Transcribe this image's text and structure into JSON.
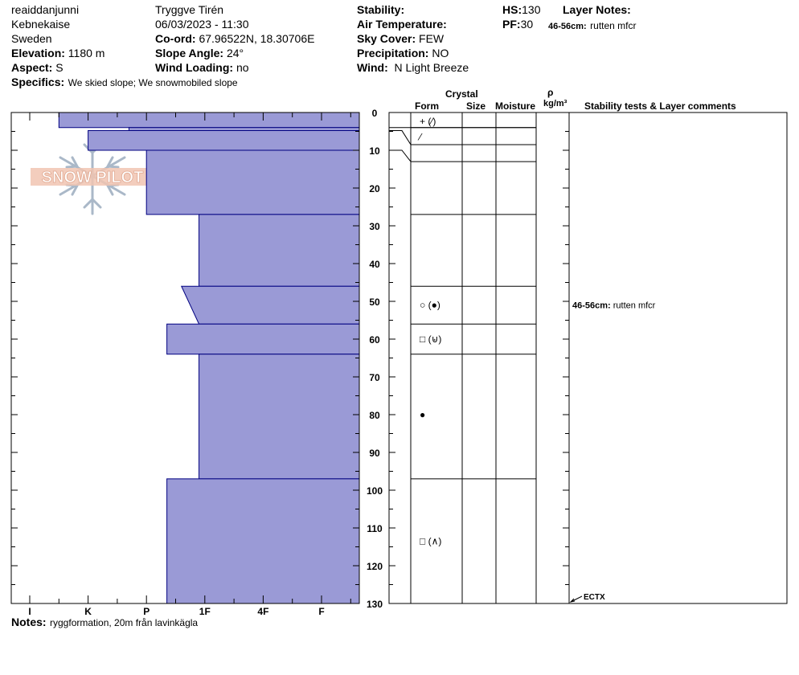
{
  "header": {
    "observer": "reaiddanjunni",
    "location": "Kebnekaise",
    "country": "Sweden",
    "elevation_label": "Elevation:",
    "elevation": "1180 m",
    "aspect_label": "Aspect:",
    "aspect": "S",
    "specifics_label": "Specifics:",
    "specifics": "We skied slope; We snowmobiled slope",
    "name": "Tryggve  Tirén",
    "datetime": "06/03/2023 - 11:30",
    "coord_label": "Co-ord:",
    "coord": "67.96522N, 18.30706E",
    "slope_label": "Slope Angle:",
    "slope": "24°",
    "wind_loading_label": "Wind Loading:",
    "wind_loading": "no",
    "stability_label": "Stability:",
    "stability": "",
    "air_temp_label": "Air Temperature:",
    "air_temp": "",
    "sky_label": "Sky Cover:",
    "sky": "FEW",
    "precip_label": "Precipitation:",
    "precip": "NO",
    "wind_label": "Wind:",
    "wind": "N Light Breeze",
    "hs_label": "HS:",
    "hs": "130",
    "pf_label": "PF:",
    "pf": "30",
    "layer_notes_label": "Layer Notes:",
    "layer_note_range": "46-56cm:",
    "layer_note_text": "rutten mfcr"
  },
  "notes_label": "Notes:",
  "notes": "ryggformation, 20m från lavinkägla",
  "logo_text": "SNOW PILOT",
  "table_headers": {
    "crystal": "Crystal",
    "form": "Form",
    "size": "Size",
    "moisture": "Moisture",
    "rho": "ρ",
    "density_unit": "kg/m³",
    "stability_comments": "Stability tests & Layer comments"
  },
  "comments": [
    {
      "range": "46-56cm:",
      "text": "rutten mfcr",
      "depth": 51
    }
  ],
  "stability_tests": [
    {
      "label": "ECTX",
      "depth": 130
    }
  ],
  "colors": {
    "layer_fill": "#9a9ad6",
    "layer_stroke": "#000080"
  },
  "chart_data": {
    "type": "bar",
    "orientation": "horizontal",
    "xlabel": "",
    "ylabel": "",
    "y_axis": {
      "ticks": [
        0,
        10,
        20,
        30,
        40,
        50,
        60,
        70,
        80,
        90,
        100,
        110,
        120,
        130
      ],
      "range": [
        0,
        130
      ]
    },
    "hardness_ticks": [
      "I",
      "K",
      "P",
      "1F",
      "4F",
      "F"
    ],
    "layers": [
      {
        "top": 0,
        "bottom": 4,
        "hardness": 0.5
      },
      {
        "top": 4,
        "bottom": 4.8,
        "hardness": 1.7
      },
      {
        "top": 4.8,
        "bottom": 10,
        "hardness": 1.0
      },
      {
        "top": 10,
        "bottom": 27,
        "hardness": 2.0
      },
      {
        "top": 27,
        "bottom": 46,
        "hardness": 2.9
      },
      {
        "top": 46,
        "bottom": 56,
        "hardness_top": 2.6,
        "hardness_bottom": 2.9
      },
      {
        "top": 56,
        "bottom": 64,
        "hardness": 2.35
      },
      {
        "top": 64,
        "bottom": 97,
        "hardness": 2.9
      },
      {
        "top": 97,
        "bottom": 130,
        "hardness": 2.35
      }
    ],
    "layer_boundaries": [
      4,
      8.5,
      13,
      27,
      46,
      56,
      64,
      97
    ],
    "crystal_marks": [
      {
        "depth": 2.3,
        "symbol": "+ (⁄)"
      },
      {
        "depth": 6.5,
        "symbol": "⁄"
      },
      {
        "depth": 51,
        "symbol": "○ (●)"
      },
      {
        "depth": 60,
        "symbol": "□ (⊌)"
      },
      {
        "depth": 80,
        "symbol": "●"
      },
      {
        "depth": 113.5,
        "symbol": "□ (∧)"
      }
    ]
  }
}
